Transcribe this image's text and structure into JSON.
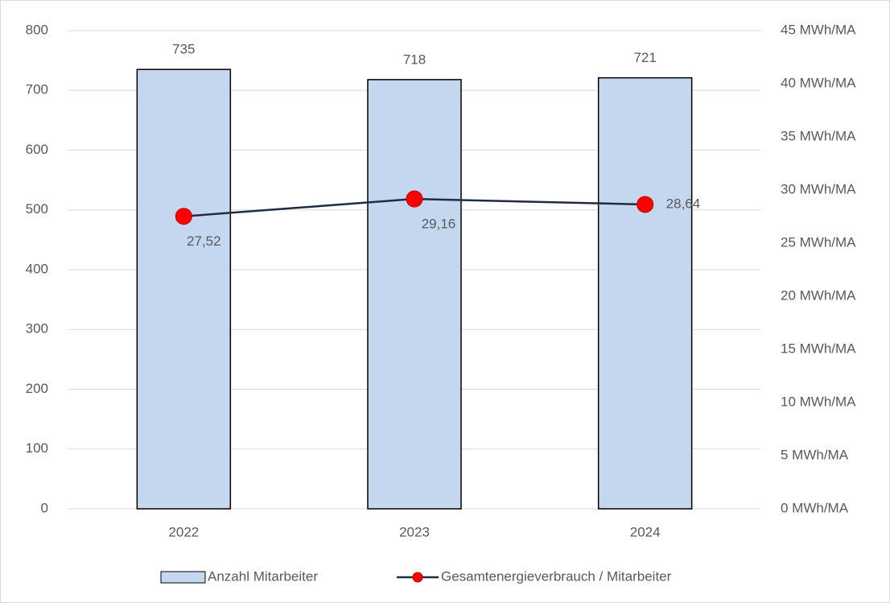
{
  "chart_data": {
    "type": "bar",
    "categories": [
      "2022",
      "2023",
      "2024"
    ],
    "series": [
      {
        "name": "Anzahl Mitarbeiter",
        "type": "bar",
        "color": "#c5d6ef",
        "values": [
          735,
          718,
          721
        ]
      },
      {
        "name": "Gesamtenergieverbrauch / Mitarbeiter",
        "type": "line",
        "axis": "y2",
        "color": "#1f2d44",
        "marker_color": "#ff0000",
        "values": [
          27.52,
          29.16,
          28.64
        ],
        "value_labels": [
          "27,52",
          "29,16",
          "28,64"
        ]
      }
    ],
    "ylim": [
      0,
      800
    ],
    "yticks": [
      0,
      100,
      200,
      300,
      400,
      500,
      600,
      700,
      800
    ],
    "y2lim": [
      0,
      45
    ],
    "y2ticks": [
      {
        "value": 0,
        "label": "0 MWh/MA"
      },
      {
        "value": 5,
        "label": "5 MWh/MA"
      },
      {
        "value": 10,
        "label": "10 MWh/MA"
      },
      {
        "value": 15,
        "label": "15 MWh/MA"
      },
      {
        "value": 20,
        "label": "20 MWh/MA"
      },
      {
        "value": 25,
        "label": "25 MWh/MA"
      },
      {
        "value": 30,
        "label": "30 MWh/MA"
      },
      {
        "value": 35,
        "label": "35 MWh/MA"
      },
      {
        "value": 40,
        "label": "40 MWh/MA"
      },
      {
        "value": 45,
        "label": "45 MWh/MA"
      }
    ],
    "grid": true,
    "legend": "bottom"
  }
}
